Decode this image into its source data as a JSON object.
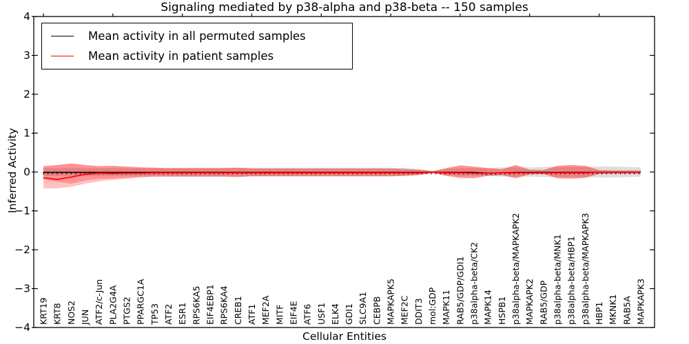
{
  "title": "Signaling mediated by p38-alpha and p38-beta -- 150 samples",
  "axes": {
    "xlabel": "Cellular Entities",
    "ylabel": "Inferred Activity",
    "ytick_labels": [
      "4",
      "3",
      "2",
      "1",
      "0",
      "−1",
      "−2",
      "−3",
      "−4"
    ],
    "ytick_values": [
      4,
      3,
      2,
      1,
      0,
      -1,
      -2,
      -3,
      -4
    ]
  },
  "legend": {
    "items": [
      {
        "label": "Mean activity in all permuted samples",
        "color": "#000000"
      },
      {
        "label": "Mean activity in patient samples",
        "color": "#ff0000"
      }
    ]
  },
  "colors": {
    "permuted_line": "#000000",
    "patient_line": "#ff0000",
    "patient_band": "#ff0000",
    "permuted_band": "#000000",
    "spine": "#000000"
  },
  "chart_data": {
    "type": "line",
    "title": "Signaling mediated by p38-alpha and p38-beta -- 150 samples",
    "xlabel": "Cellular Entities",
    "ylabel": "Inferred Activity",
    "ylim": [
      -4,
      4
    ],
    "grid": false,
    "legend_position": "upper left",
    "categories": [
      "KRT19",
      "KRT8",
      "NOS2",
      "JUN",
      "ATF2/c-Jun",
      "PLA2G4A",
      "PTGS2",
      "PPARGC1A",
      "TP53",
      "ATF2",
      "ESR1",
      "RPS6KA5",
      "EIF4EBP1",
      "RPS6KA4",
      "CREB1",
      "ATF1",
      "MEF2A",
      "MITF",
      "EIF4E",
      "ATF6",
      "USF1",
      "ELK4",
      "GDI1",
      "SLC9A1",
      "CEBPB",
      "MAPKAPK5",
      "MEF2C",
      "DDIT3",
      "mol:GDP",
      "MAPK11",
      "RAB5/GDP/GDI1",
      "p38alpha-beta/CK2",
      "MAPK14",
      "HSPB1",
      "p38alpha-beta/MAPKAPK2",
      "MAPKAPK2",
      "RAB5/GDP",
      "p38alpha-beta/MNK1",
      "p38alpha-beta/HBP1",
      "p38alpha-beta/MAPKAPK3",
      "HBP1",
      "MKNK1",
      "RAB5A",
      "MAPKAPK3"
    ],
    "series": [
      {
        "name": "Mean activity in all permuted samples",
        "values": [
          -0.01,
          -0.01,
          -0.01,
          -0.01,
          -0.01,
          -0.01,
          -0.01,
          -0.01,
          -0.01,
          -0.01,
          -0.01,
          -0.01,
          -0.01,
          -0.01,
          -0.01,
          -0.01,
          -0.01,
          -0.01,
          -0.01,
          -0.01,
          -0.01,
          -0.01,
          -0.01,
          -0.01,
          -0.01,
          -0.01,
          -0.01,
          -0.01,
          -0.01,
          -0.01,
          -0.01,
          -0.01,
          -0.03,
          -0.02,
          -0.01,
          -0.01,
          -0.01,
          -0.01,
          -0.01,
          -0.01,
          -0.01,
          -0.01,
          -0.01,
          -0.01
        ]
      },
      {
        "name": "Mean activity in patient samples",
        "values": [
          -0.15,
          -0.19,
          -0.13,
          -0.06,
          -0.03,
          -0.04,
          -0.03,
          -0.03,
          -0.02,
          -0.02,
          -0.02,
          -0.02,
          -0.02,
          -0.02,
          -0.02,
          -0.02,
          -0.02,
          -0.02,
          -0.02,
          -0.02,
          -0.02,
          -0.02,
          -0.02,
          -0.02,
          -0.02,
          -0.02,
          -0.02,
          -0.02,
          -0.01,
          -0.02,
          -0.02,
          -0.03,
          -0.03,
          -0.02,
          -0.02,
          -0.02,
          -0.02,
          -0.02,
          -0.02,
          -0.02,
          -0.01,
          -0.01,
          -0.01,
          -0.01
        ]
      }
    ],
    "bands": [
      {
        "name": "permuted-samples-spread",
        "upper": [
          0.1,
          0.1,
          0.1,
          0.1,
          0.1,
          0.1,
          0.1,
          0.1,
          0.1,
          0.1,
          0.11,
          0.11,
          0.11,
          0.11,
          0.11,
          0.11,
          0.11,
          0.11,
          0.11,
          0.11,
          0.11,
          0.11,
          0.11,
          0.11,
          0.11,
          0.11,
          0.1,
          0.08,
          0.03,
          0.08,
          0.1,
          0.1,
          0.1,
          0.12,
          0.12,
          0.12,
          0.13,
          0.13,
          0.13,
          0.13,
          0.14,
          0.14,
          0.13,
          0.12
        ],
        "lower": [
          -0.1,
          -0.1,
          -0.1,
          -0.1,
          -0.1,
          -0.1,
          -0.1,
          -0.1,
          -0.1,
          -0.1,
          -0.11,
          -0.11,
          -0.11,
          -0.11,
          -0.11,
          -0.11,
          -0.11,
          -0.11,
          -0.11,
          -0.11,
          -0.11,
          -0.11,
          -0.11,
          -0.11,
          -0.11,
          -0.11,
          -0.1,
          -0.08,
          -0.03,
          -0.08,
          -0.1,
          -0.1,
          -0.1,
          -0.12,
          -0.12,
          -0.12,
          -0.13,
          -0.13,
          -0.13,
          -0.13,
          -0.14,
          -0.14,
          -0.13,
          -0.12
        ]
      },
      {
        "name": "patient-samples-spread-outer",
        "upper": [
          0.15,
          0.18,
          0.22,
          0.18,
          0.15,
          0.16,
          0.14,
          0.12,
          0.11,
          0.1,
          0.1,
          0.1,
          0.1,
          0.1,
          0.11,
          0.09,
          0.09,
          0.09,
          0.09,
          0.09,
          0.09,
          0.09,
          0.09,
          0.09,
          0.09,
          0.09,
          0.08,
          0.06,
          0.02,
          0.1,
          0.17,
          0.14,
          0.1,
          0.07,
          0.18,
          0.06,
          0.05,
          0.16,
          0.18,
          0.16,
          0.05,
          0.04,
          0.04,
          0.04
        ],
        "lower": [
          -0.42,
          -0.42,
          -0.38,
          -0.3,
          -0.24,
          -0.2,
          -0.17,
          -0.14,
          -0.12,
          -0.12,
          -0.12,
          -0.12,
          -0.12,
          -0.12,
          -0.13,
          -0.11,
          -0.11,
          -0.11,
          -0.11,
          -0.11,
          -0.11,
          -0.11,
          -0.11,
          -0.11,
          -0.11,
          -0.11,
          -0.1,
          -0.08,
          -0.02,
          -0.1,
          -0.15,
          -0.16,
          -0.1,
          -0.08,
          -0.16,
          -0.06,
          -0.05,
          -0.16,
          -0.17,
          -0.15,
          -0.05,
          -0.04,
          -0.04,
          -0.04
        ]
      },
      {
        "name": "patient-samples-spread-inner",
        "upper": [
          0.15,
          0.18,
          0.22,
          0.18,
          0.15,
          0.16,
          0.14,
          0.12,
          0.11,
          0.1,
          0.1,
          0.1,
          0.1,
          0.1,
          0.11,
          0.09,
          0.09,
          0.09,
          0.09,
          0.09,
          0.09,
          0.09,
          0.09,
          0.09,
          0.09,
          0.09,
          0.08,
          0.06,
          0.02,
          0.1,
          0.17,
          0.14,
          0.1,
          0.07,
          0.18,
          0.06,
          0.05,
          0.16,
          0.18,
          0.16,
          0.05,
          0.04,
          0.04,
          0.04
        ],
        "lower": [
          -0.18,
          -0.25,
          -0.3,
          -0.22,
          -0.18,
          -0.17,
          -0.15,
          -0.13,
          -0.12,
          -0.12,
          -0.12,
          -0.12,
          -0.12,
          -0.12,
          -0.13,
          -0.11,
          -0.11,
          -0.11,
          -0.11,
          -0.11,
          -0.11,
          -0.11,
          -0.11,
          -0.11,
          -0.11,
          -0.11,
          -0.1,
          -0.08,
          -0.02,
          -0.1,
          -0.15,
          -0.16,
          -0.1,
          -0.08,
          -0.16,
          -0.06,
          -0.05,
          -0.16,
          -0.17,
          -0.15,
          -0.05,
          -0.04,
          -0.04,
          -0.04
        ]
      }
    ]
  }
}
